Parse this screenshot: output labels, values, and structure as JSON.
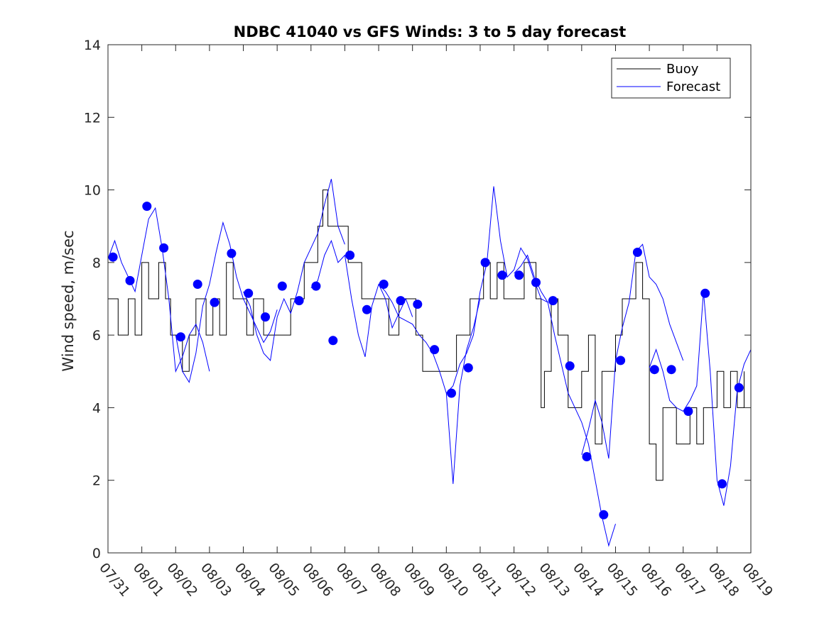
{
  "chart_data": {
    "type": "line",
    "title": "NDBC 41040 vs GFS Winds: 3 to 5 day forecast",
    "xlabel": "",
    "ylabel": "Wind speed, m/sec",
    "ylim": [
      0,
      14
    ],
    "yticks": [
      0,
      2,
      4,
      6,
      8,
      10,
      12,
      14
    ],
    "xlim": [
      0,
      19
    ],
    "xtick_labels": [
      "07/31",
      "08/01",
      "08/02",
      "08/03",
      "08/04",
      "08/05",
      "08/06",
      "08/07",
      "08/08",
      "08/09",
      "08/10",
      "08/11",
      "08/12",
      "08/13",
      "08/14",
      "08/15",
      "08/16",
      "08/17",
      "08/18",
      "08/19"
    ],
    "legend": {
      "placement": "top-right",
      "entries": [
        "Buoy",
        "Forecast"
      ]
    },
    "colors": {
      "buoy": "#000000",
      "forecast": "#0000ff",
      "axis": "#262626"
    },
    "series": [
      {
        "name": "Buoy",
        "note": "approximate trace, 1 m/s quantized",
        "x": [
          0,
          0.3,
          0.6,
          0.8,
          1.0,
          1.2,
          1.5,
          1.7,
          1.85,
          2.0,
          2.2,
          2.4,
          2.6,
          2.9,
          3.1,
          3.3,
          3.5,
          3.7,
          3.9,
          4.1,
          4.3,
          4.6,
          4.9,
          5.2,
          5.4,
          5.6,
          5.8,
          6.0,
          6.2,
          6.35,
          6.5,
          6.7,
          6.9,
          7.1,
          7.3,
          7.5,
          7.7,
          7.9,
          8.1,
          8.3,
          8.6,
          8.9,
          9.1,
          9.3,
          9.6,
          9.9,
          10.1,
          10.3,
          10.5,
          10.7,
          10.9,
          11.1,
          11.3,
          11.5,
          11.7,
          11.9,
          12.1,
          12.3,
          12.5,
          12.65,
          12.8,
          12.9,
          13.1,
          13.3,
          13.5,
          13.6,
          13.8,
          14.0,
          14.2,
          14.4,
          14.6,
          14.8,
          15.0,
          15.2,
          15.4,
          15.6,
          15.8,
          16.0,
          16.2,
          16.4,
          16.6,
          16.8,
          17.0,
          17.2,
          17.4,
          17.6,
          17.8,
          18.0,
          18.2,
          18.4,
          18.6,
          18.8
        ],
        "values": [
          7,
          6,
          7,
          6,
          8,
          7,
          8,
          7,
          6,
          6,
          5,
          6,
          7,
          6,
          7,
          6,
          8,
          7,
          7,
          6,
          7,
          6,
          6,
          6,
          7,
          7,
          8,
          8,
          9,
          10,
          9,
          9,
          9,
          8,
          8,
          7,
          7,
          7,
          7,
          6,
          7,
          7,
          6,
          5,
          5,
          5,
          5,
          6,
          6,
          7,
          7,
          8,
          7,
          8,
          7,
          7,
          7,
          8,
          8,
          7,
          4,
          5,
          7,
          6,
          6,
          4,
          4,
          5,
          6,
          3,
          5,
          5,
          6,
          7,
          7,
          8,
          7,
          3,
          2,
          4,
          4,
          3,
          3,
          4,
          3,
          4,
          4,
          5,
          4,
          5,
          4,
          5
        ]
      },
      {
        "name": "Forecast",
        "note": "forecast traces; markers show forecast start points",
        "lines": [
          {
            "x": [
              0,
              0.2,
              0.4,
              0.6,
              0.8,
              1.0,
              1.2,
              1.4,
              1.6,
              1.8,
              2.0,
              2.2,
              2.4,
              2.6,
              2.8,
              3.0
            ],
            "values": [
              8.1,
              8.6,
              8.0,
              7.6,
              7.2,
              8.2,
              9.2,
              9.5,
              8.4,
              7.0,
              5.0,
              5.4,
              6.0,
              6.3,
              5.8,
              5.0
            ]
          },
          {
            "x": [
              2.0,
              2.2,
              2.4,
              2.6,
              2.8,
              3.0,
              3.2,
              3.4,
              3.6,
              3.8,
              4.0,
              4.2,
              4.4,
              4.6,
              4.8,
              5.0
            ],
            "values": [
              6.0,
              5.0,
              4.7,
              5.5,
              6.8,
              7.4,
              8.3,
              9.1,
              8.5,
              7.6,
              7.0,
              6.6,
              6.2,
              5.8,
              6.1,
              6.7
            ]
          },
          {
            "x": [
              4.0,
              4.2,
              4.4,
              4.6,
              4.8,
              5.0,
              5.2,
              5.4,
              5.6,
              5.8,
              6.0,
              6.2,
              6.4,
              6.6,
              6.8,
              7.0
            ],
            "values": [
              7.2,
              6.8,
              6.0,
              5.5,
              5.3,
              6.5,
              7.0,
              6.6,
              7.2,
              8.0,
              8.4,
              8.8,
              9.6,
              10.3,
              9.0,
              8.5
            ]
          },
          {
            "x": [
              6.0,
              6.2,
              6.4,
              6.6,
              6.8,
              7.0,
              7.2,
              7.4,
              7.6,
              7.8,
              8.0,
              8.2,
              8.4,
              8.6,
              8.8,
              9.0
            ],
            "values": [
              7.3,
              7.5,
              8.2,
              8.6,
              8.0,
              8.2,
              7.0,
              6.0,
              5.4,
              6.8,
              7.4,
              7.0,
              6.2,
              6.6,
              7.0,
              6.5
            ]
          },
          {
            "x": [
              8.0,
              8.2,
              8.4,
              8.6,
              8.8,
              9.0,
              9.2,
              9.4,
              9.6,
              9.8,
              10.0,
              10.2,
              10.4,
              10.6,
              10.8,
              11.0
            ],
            "values": [
              7.4,
              7.2,
              6.9,
              6.5,
              6.4,
              6.3,
              6.0,
              5.8,
              5.5,
              5.0,
              4.4,
              1.9,
              4.6,
              5.6,
              6.2,
              7.0
            ]
          },
          {
            "x": [
              10.0,
              10.2,
              10.4,
              10.6,
              10.8,
              11.0,
              11.2,
              11.4,
              11.6,
              11.8,
              12.0,
              12.2,
              12.4,
              12.6,
              12.8,
              13.0
            ],
            "values": [
              4.4,
              4.6,
              5.2,
              5.5,
              6.0,
              7.2,
              8.0,
              10.1,
              8.6,
              7.6,
              7.8,
              8.4,
              8.1,
              7.5,
              7.0,
              6.9
            ]
          },
          {
            "x": [
              12.0,
              12.2,
              12.4,
              12.6,
              12.8,
              13.0,
              13.2,
              13.4,
              13.6,
              13.8,
              14.0,
              14.2,
              14.4,
              14.6,
              14.8,
              15.0
            ],
            "values": [
              7.7,
              7.9,
              8.2,
              7.6,
              7.2,
              6.9,
              6.0,
              5.2,
              4.4,
              4.0,
              3.6,
              3.0,
              2.0,
              1.0,
              0.2,
              0.8
            ]
          },
          {
            "x": [
              14.0,
              14.2,
              14.4,
              14.6,
              14.8,
              15.0,
              15.2,
              15.4,
              15.6,
              15.8,
              16.0,
              16.2,
              16.4,
              16.6,
              16.8,
              17.0
            ],
            "values": [
              2.7,
              3.4,
              4.2,
              3.6,
              2.6,
              5.3,
              6.2,
              6.9,
              8.3,
              8.5,
              7.6,
              7.4,
              7.0,
              6.3,
              5.8,
              5.3
            ]
          },
          {
            "x": [
              16.0,
              16.2,
              16.4,
              16.6,
              16.8,
              17.0,
              17.2,
              17.4,
              17.6,
              17.8,
              18.0,
              18.2,
              18.4,
              18.6,
              18.8,
              19.0
            ],
            "values": [
              5.1,
              5.6,
              5.0,
              4.2,
              4.0,
              3.9,
              4.2,
              4.6,
              7.2,
              5.0,
              2.0,
              1.3,
              2.4,
              4.5,
              5.2,
              5.6
            ]
          }
        ],
        "markers": {
          "x": [
            0.15,
            0.65,
            1.15,
            1.65,
            2.15,
            2.65,
            3.15,
            3.65,
            4.15,
            4.65,
            5.15,
            5.65,
            6.15,
            6.65,
            7.15,
            7.65,
            8.15,
            8.65,
            9.15,
            9.65,
            10.15,
            10.65,
            11.15,
            11.65,
            12.15,
            12.65,
            13.15,
            13.65,
            14.15,
            14.65,
            15.15,
            15.65,
            16.15,
            16.65,
            17.15,
            17.65,
            18.15,
            18.65
          ],
          "values": [
            8.15,
            7.5,
            9.55,
            8.4,
            5.95,
            7.4,
            6.9,
            8.25,
            7.15,
            6.5,
            7.35,
            6.95,
            7.35,
            5.85,
            8.2,
            6.7,
            7.4,
            6.95,
            6.85,
            5.6,
            4.4,
            5.1,
            8.0,
            7.65,
            7.65,
            7.45,
            6.95,
            5.15,
            2.65,
            1.05,
            5.3,
            8.28,
            5.05,
            5.05,
            3.9,
            7.15,
            1.9,
            4.55
          ]
        }
      }
    ]
  }
}
